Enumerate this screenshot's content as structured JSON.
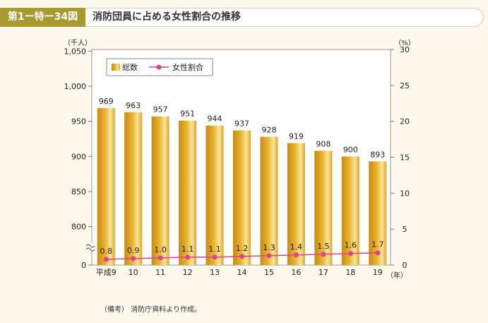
{
  "figure_label": "第1ー特ー34図",
  "title": "消防団員に占める女性割合の推移",
  "note": "（備考） 消防庁資料より作成。",
  "colors": {
    "bar": "#e9b530",
    "line": "#e0418e",
    "tag": "#a89a2e"
  },
  "chart_data": {
    "type": "bar",
    "title": "消防団員に占める女性割合の推移",
    "categories": [
      "平成9",
      "10",
      "11",
      "12",
      "13",
      "14",
      "15",
      "16",
      "17",
      "18",
      "19"
    ],
    "series": [
      {
        "name": "総数",
        "type": "bar",
        "axis": "left",
        "values": [
          969,
          963,
          957,
          951,
          944,
          937,
          928,
          919,
          908,
          900,
          893
        ]
      },
      {
        "name": "女性割合",
        "type": "line",
        "axis": "right",
        "values": [
          0.8,
          0.9,
          1.0,
          1.1,
          1.1,
          1.2,
          1.3,
          1.4,
          1.5,
          1.6,
          1.7
        ]
      }
    ],
    "y_left": {
      "unit": "（千人）",
      "ticks": [
        "0",
        "800",
        "850",
        "900",
        "950",
        "1,000",
        "1,050"
      ],
      "range": [
        750,
        1050
      ],
      "axis_break": true
    },
    "y_right": {
      "unit": "（%）",
      "ticks": [
        "0",
        "5",
        "10",
        "15",
        "20",
        "25",
        "30"
      ],
      "range": [
        0,
        30
      ]
    },
    "x_unit": "（年）",
    "legend": {
      "position": "top-left"
    },
    "grid": false
  }
}
